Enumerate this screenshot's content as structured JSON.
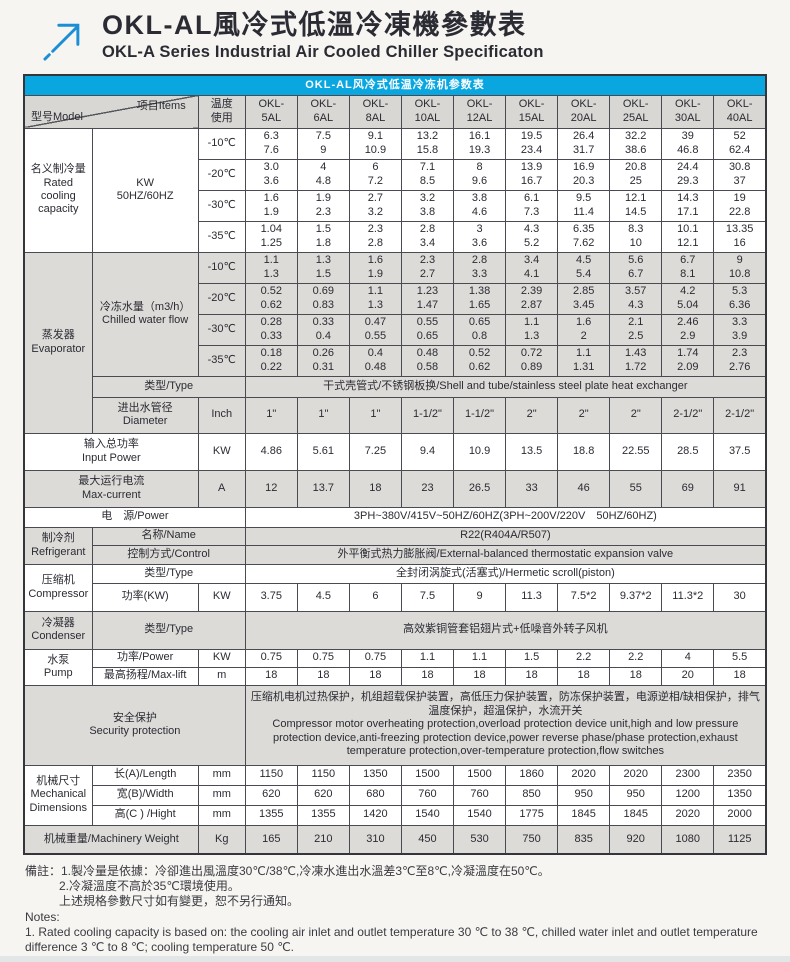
{
  "header": {
    "title_zh": "OKL-AL風冷式低溫冷凍機參數表",
    "title_en": "OKL-A Series Industrial Air Cooled Chiller Specificaton",
    "logo_icon": "arrow-up-right-icon",
    "accent_blue": "#09a6e0",
    "arrow_blue": "#1b8ed6"
  },
  "table": {
    "caption": "OKL-AL风冷式低温冷冻机参数表",
    "grid": [
      {
        "name": "caption-row",
        "h": 20,
        "cells": [
          {
            "t": "OKL-AL风冷式低温冷冻机参数表",
            "c": 13,
            "cls": "cap",
            "name": "table-caption"
          }
        ]
      },
      {
        "name": "header-row",
        "h": 33,
        "shade": false,
        "cells": [
          {
            "diag": true,
            "t1": "型号Model",
            "t2": "项目Items",
            "c": 2,
            "name": "corner-header-cell"
          },
          {
            "t": "温度\n使用",
            "cls": "head",
            "name": "temp-usage-header"
          },
          {
            "t": "OKL-\n5AL",
            "cls": "head",
            "name": "model-header-5al"
          },
          {
            "t": "OKL-\n6AL",
            "cls": "head",
            "name": "model-header-6al"
          },
          {
            "t": "OKL-\n8AL",
            "cls": "head",
            "name": "model-header-8al"
          },
          {
            "t": "OKL-\n10AL",
            "cls": "head",
            "name": "model-header-10al"
          },
          {
            "t": "OKL-\n12AL",
            "cls": "head",
            "name": "model-header-12al"
          },
          {
            "t": "OKL-\n15AL",
            "cls": "head",
            "name": "model-header-15al"
          },
          {
            "t": "OKL-\n20AL",
            "cls": "head",
            "name": "model-header-20al"
          },
          {
            "t": "OKL-\n25AL",
            "cls": "head",
            "name": "model-header-25al"
          },
          {
            "t": "OKL-\n30AL",
            "cls": "head",
            "name": "model-header-30al"
          },
          {
            "t": "OKL-\n40AL",
            "cls": "head",
            "name": "model-header-40al"
          }
        ]
      },
      {
        "name": "row-cooling-10",
        "h": 31,
        "cells": [
          {
            "t": "名义制冷量\nRated\ncooling\ncapacity",
            "r": 4,
            "name": "section-rated-cooling"
          },
          {
            "t": "KW\n50HZ/60HZ",
            "r": 4,
            "name": "cooling-unit"
          },
          {
            "t": "-10℃"
          },
          {
            "t": "6.3\n7.6"
          },
          {
            "t": "7.5\n9"
          },
          {
            "t": "9.1\n10.9"
          },
          {
            "t": "13.2\n15.8"
          },
          {
            "t": "16.1\n19.3"
          },
          {
            "t": "19.5\n23.4"
          },
          {
            "t": "26.4\n31.7"
          },
          {
            "t": "32.2\n38.6"
          },
          {
            "t": "39\n46.8"
          },
          {
            "t": "52\n62.4"
          }
        ]
      },
      {
        "name": "row-cooling-20",
        "h": 31,
        "cells": [
          {
            "t": "-20℃"
          },
          {
            "t": "3.0\n3.6"
          },
          {
            "t": "4\n4.8"
          },
          {
            "t": "6\n7.2"
          },
          {
            "t": "7.1\n8.5"
          },
          {
            "t": "8\n9.6"
          },
          {
            "t": "13.9\n16.7"
          },
          {
            "t": "16.9\n20.3"
          },
          {
            "t": "20.8\n25"
          },
          {
            "t": "24.4\n29.3"
          },
          {
            "t": "30.8\n37"
          }
        ]
      },
      {
        "name": "row-cooling-30",
        "h": 31,
        "cells": [
          {
            "t": "-30℃"
          },
          {
            "t": "1.6\n1.9"
          },
          {
            "t": "1.9\n2.3"
          },
          {
            "t": "2.7\n3.2"
          },
          {
            "t": "3.2\n3.8"
          },
          {
            "t": "3.8\n4.6"
          },
          {
            "t": "6.1\n7.3"
          },
          {
            "t": "9.5\n11.4"
          },
          {
            "t": "12.1\n14.5"
          },
          {
            "t": "14.3\n17.1"
          },
          {
            "t": "19\n22.8"
          }
        ]
      },
      {
        "name": "row-cooling-35",
        "h": 31,
        "cells": [
          {
            "t": "-35℃"
          },
          {
            "t": "1.04\n1.25"
          },
          {
            "t": "1.5\n1.8"
          },
          {
            "t": "2.3\n2.8"
          },
          {
            "t": "2.8\n3.4"
          },
          {
            "t": "3\n3.6"
          },
          {
            "t": "4.3\n5.2"
          },
          {
            "t": "6.35\n7.62"
          },
          {
            "t": "8.3\n10"
          },
          {
            "t": "10.1\n12.1"
          },
          {
            "t": "13.35\n16"
          }
        ]
      },
      {
        "name": "row-evap-flow-10",
        "h": 31,
        "shade": true,
        "cells": [
          {
            "t": "蒸发器\nEvaporator",
            "r": 6,
            "name": "section-evaporator"
          },
          {
            "t": "冷冻水量（m3/h）\nChilled water flow",
            "r": 4,
            "name": "chilled-water-flow-label"
          },
          {
            "t": "-10℃"
          },
          {
            "t": "1.1\n1.3"
          },
          {
            "t": "1.3\n1.5"
          },
          {
            "t": "1.6\n1.9"
          },
          {
            "t": "2.3\n2.7"
          },
          {
            "t": "2.8\n3.3"
          },
          {
            "t": "3.4\n4.1"
          },
          {
            "t": "4.5\n5.4"
          },
          {
            "t": "5.6\n6.7"
          },
          {
            "t": "6.7\n8.1"
          },
          {
            "t": "9\n10.8"
          }
        ]
      },
      {
        "name": "row-evap-flow-20",
        "h": 31,
        "shade": true,
        "cells": [
          {
            "t": "-20℃"
          },
          {
            "t": "0.52\n0.62"
          },
          {
            "t": "0.69\n0.83"
          },
          {
            "t": "1.1\n1.3"
          },
          {
            "t": "1.23\n1.47"
          },
          {
            "t": "1.38\n1.65"
          },
          {
            "t": "2.39\n2.87"
          },
          {
            "t": "2.85\n3.45"
          },
          {
            "t": "3.57\n4.3"
          },
          {
            "t": "4.2\n5.04"
          },
          {
            "t": "5.3\n6.36"
          }
        ]
      },
      {
        "name": "row-evap-flow-30",
        "h": 31,
        "shade": true,
        "cells": [
          {
            "t": "-30℃"
          },
          {
            "t": "0.28\n0.33"
          },
          {
            "t": "0.33\n0.4"
          },
          {
            "t": "0.47\n0.55"
          },
          {
            "t": "0.55\n0.65"
          },
          {
            "t": "0.65\n0.8"
          },
          {
            "t": "1.1\n1.3"
          },
          {
            "t": "1.6\n2"
          },
          {
            "t": "2.1\n2.5"
          },
          {
            "t": "2.46\n2.9"
          },
          {
            "t": "3.3\n3.9"
          }
        ]
      },
      {
        "name": "row-evap-flow-35",
        "h": 31,
        "shade": true,
        "cells": [
          {
            "t": "-35℃"
          },
          {
            "t": "0.18\n0.22"
          },
          {
            "t": "0.26\n0.31"
          },
          {
            "t": "0.4\n0.48"
          },
          {
            "t": "0.48\n0.58"
          },
          {
            "t": "0.52\n0.62"
          },
          {
            "t": "0.72\n0.89"
          },
          {
            "t": "1.1\n1.31"
          },
          {
            "t": "1.43\n1.72"
          },
          {
            "t": "1.74\n2.09"
          },
          {
            "t": "2.3\n2.76"
          }
        ]
      },
      {
        "name": "row-evap-type",
        "h": 21,
        "shade": true,
        "cells": [
          {
            "t": "类型/Type",
            "c": 2,
            "name": "evap-type-label"
          },
          {
            "t": "干式壳管式/不锈钢板换/Shell and tube/stainless steel plate heat exchanger",
            "c": 10,
            "name": "evap-type-value"
          }
        ]
      },
      {
        "name": "row-diameter",
        "h": 36,
        "shade": true,
        "cells": [
          {
            "t": "进出水管径\nDiameter",
            "name": "diameter-label"
          },
          {
            "t": "Inch"
          },
          {
            "t": "1\""
          },
          {
            "t": "1\""
          },
          {
            "t": "1\""
          },
          {
            "t": "1-1/2\""
          },
          {
            "t": "1-1/2\""
          },
          {
            "t": "2\""
          },
          {
            "t": "2\""
          },
          {
            "t": "2\""
          },
          {
            "t": "2-1/2\""
          },
          {
            "t": "2-1/2\""
          }
        ]
      },
      {
        "name": "row-input-power",
        "h": 37,
        "cells": [
          {
            "t": "输入总功率\nInput Power",
            "c": 2,
            "name": "input-power-label"
          },
          {
            "t": "KW"
          },
          {
            "t": "4.86"
          },
          {
            "t": "5.61"
          },
          {
            "t": "7.25"
          },
          {
            "t": "9.4"
          },
          {
            "t": "10.9"
          },
          {
            "t": "13.5"
          },
          {
            "t": "18.8"
          },
          {
            "t": "22.55"
          },
          {
            "t": "28.5"
          },
          {
            "t": "37.5"
          }
        ]
      },
      {
        "name": "row-max-current",
        "h": 37,
        "shade": true,
        "cells": [
          {
            "t": "最大运行电流\nMax-current",
            "c": 2,
            "name": "max-current-label"
          },
          {
            "t": "A"
          },
          {
            "t": "12"
          },
          {
            "t": "13.7"
          },
          {
            "t": "18"
          },
          {
            "t": "23"
          },
          {
            "t": "26.5"
          },
          {
            "t": "33"
          },
          {
            "t": "46"
          },
          {
            "t": "55"
          },
          {
            "t": "69"
          },
          {
            "t": "91"
          }
        ]
      },
      {
        "name": "row-power-supply",
        "h": 20,
        "cells": [
          {
            "t": "电　源/Power",
            "c": 3,
            "name": "power-supply-label"
          },
          {
            "t": "3PH~380V/415V~50HZ/60HZ(3PH~200V/220V　50HZ/60HZ)",
            "c": 10,
            "name": "power-supply-value"
          }
        ]
      },
      {
        "name": "row-refrigerant-name",
        "h": 18,
        "shade": true,
        "cells": [
          {
            "t": "制冷剂\nRefrigerant",
            "r": 2,
            "name": "section-refrigerant"
          },
          {
            "t": "名称/Name",
            "c": 2,
            "name": "refrigerant-name-label"
          },
          {
            "t": "R22(R404A/R507)",
            "c": 10,
            "name": "refrigerant-name-value"
          }
        ]
      },
      {
        "name": "row-refrigerant-control",
        "h": 19,
        "shade": true,
        "cells": [
          {
            "t": "控制方式/Control",
            "c": 2,
            "name": "refrigerant-control-label"
          },
          {
            "t": "外平衡式热力膨胀阀/External-balanced thermostatic expansion valve",
            "c": 10,
            "name": "refrigerant-control-value"
          }
        ]
      },
      {
        "name": "row-compressor-type",
        "h": 19,
        "cells": [
          {
            "t": "压缩机\nCompressor",
            "r": 2,
            "name": "section-compressor"
          },
          {
            "t": "类型/Type",
            "c": 2,
            "name": "compressor-type-label"
          },
          {
            "t": "全封闭涡旋式(活塞式)/Hermetic scroll(piston)",
            "c": 10,
            "name": "compressor-type-value"
          }
        ]
      },
      {
        "name": "row-compressor-power",
        "h": 28,
        "cells": [
          {
            "t": "功率(KW)",
            "name": "compressor-power-label"
          },
          {
            "t": "KW"
          },
          {
            "t": "3.75"
          },
          {
            "t": "4.5"
          },
          {
            "t": "6"
          },
          {
            "t": "7.5"
          },
          {
            "t": "9"
          },
          {
            "t": "11.3"
          },
          {
            "t": "7.5*2"
          },
          {
            "t": "9.37*2"
          },
          {
            "t": "11.3*2"
          },
          {
            "t": "30"
          }
        ]
      },
      {
        "name": "row-condenser-type",
        "h": 38,
        "shade": true,
        "cells": [
          {
            "t": "冷凝器\nCondenser",
            "name": "section-condenser"
          },
          {
            "t": "类型/Type",
            "c": 2,
            "name": "condenser-type-label"
          },
          {
            "t": "高效紫铜管套铝翅片式+低噪音外转子风机",
            "c": 10,
            "name": "condenser-type-value"
          }
        ]
      },
      {
        "name": "row-pump-power",
        "h": 18,
        "cells": [
          {
            "t": "水泵\nPump",
            "r": 2,
            "name": "section-pump"
          },
          {
            "t": "功率/Power",
            "name": "pump-power-label"
          },
          {
            "t": "KW"
          },
          {
            "t": "0.75"
          },
          {
            "t": "0.75"
          },
          {
            "t": "0.75"
          },
          {
            "t": "1.1"
          },
          {
            "t": "1.1"
          },
          {
            "t": "1.5"
          },
          {
            "t": "2.2"
          },
          {
            "t": "2.2"
          },
          {
            "t": "4"
          },
          {
            "t": "5.5"
          }
        ]
      },
      {
        "name": "row-pump-lift",
        "h": 18,
        "cells": [
          {
            "t": "最高扬程/Max-lift",
            "name": "pump-lift-label"
          },
          {
            "t": "m"
          },
          {
            "t": "18"
          },
          {
            "t": "18"
          },
          {
            "t": "18"
          },
          {
            "t": "18"
          },
          {
            "t": "18"
          },
          {
            "t": "18"
          },
          {
            "t": "18"
          },
          {
            "t": "18"
          },
          {
            "t": "20"
          },
          {
            "t": "18"
          }
        ]
      },
      {
        "name": "row-security",
        "h": 80,
        "shade": true,
        "cells": [
          {
            "t": "安全保护\nSecurity protection",
            "c": 3,
            "name": "section-security"
          },
          {
            "t": "压缩机电机过热保护，机组超载保护装置，高低压力保护装置，防冻保护装置，电源逆相/缺相保护，排气温度保护，超温保护，水流开关\n Compressor motor overheating protection,overload protection device unit,high and low pressure protection device,anti-freezing protection device,power reverse phase/phase protection,exhaust temperature protection,over-temperature protection,flow switches",
            "c": 10,
            "cls": "left",
            "name": "security-protection-value"
          }
        ]
      },
      {
        "name": "row-dim-length",
        "h": 20,
        "cells": [
          {
            "t": "机械尺寸\nMechanical\nDimensions",
            "r": 3,
            "name": "section-dimensions"
          },
          {
            "t": "长(A)/Length",
            "name": "length-label"
          },
          {
            "t": "mm"
          },
          {
            "t": "1150"
          },
          {
            "t": "1150"
          },
          {
            "t": "1350"
          },
          {
            "t": "1500"
          },
          {
            "t": "1500"
          },
          {
            "t": "1860"
          },
          {
            "t": "2020"
          },
          {
            "t": "2020"
          },
          {
            "t": "2300"
          },
          {
            "t": "2350"
          }
        ]
      },
      {
        "name": "row-dim-width",
        "h": 20,
        "cells": [
          {
            "t": "宽(B)/Width",
            "name": "width-label"
          },
          {
            "t": "mm"
          },
          {
            "t": "620"
          },
          {
            "t": "620"
          },
          {
            "t": "680"
          },
          {
            "t": "760"
          },
          {
            "t": "760"
          },
          {
            "t": "850"
          },
          {
            "t": "950"
          },
          {
            "t": "950"
          },
          {
            "t": "1200"
          },
          {
            "t": "1350"
          }
        ]
      },
      {
        "name": "row-dim-height",
        "h": 20,
        "cells": [
          {
            "t": "高(C ) /Hight",
            "name": "height-label"
          },
          {
            "t": "mm"
          },
          {
            "t": "1355"
          },
          {
            "t": "1355"
          },
          {
            "t": "1420"
          },
          {
            "t": "1540"
          },
          {
            "t": "1540"
          },
          {
            "t": "1775"
          },
          {
            "t": "1845"
          },
          {
            "t": "1845"
          },
          {
            "t": "2020"
          },
          {
            "t": "2000"
          }
        ]
      },
      {
        "name": "row-weight",
        "h": 29,
        "shade": true,
        "cells": [
          {
            "t": "机械重量/Machinery Weight",
            "c": 2,
            "name": "weight-label"
          },
          {
            "t": "Kg"
          },
          {
            "t": "165"
          },
          {
            "t": "210"
          },
          {
            "t": "310"
          },
          {
            "t": "450"
          },
          {
            "t": "530"
          },
          {
            "t": "750"
          },
          {
            "t": "835"
          },
          {
            "t": "920"
          },
          {
            "t": "1080"
          },
          {
            "t": "1125"
          }
        ]
      }
    ]
  },
  "notes": {
    "line1": "備註：1.製冷量是依據：冷卻進出風溫度30℃/38℃,冷凍水進出水溫差3℃至8℃,冷凝溫度在50℃。",
    "line2": "2.冷凝溫度不高於35℃環境使用。",
    "line3": "上述規格參數尺寸如有變更，恕不另行通知。",
    "line4": "Notes:",
    "line5": "1. Rated cooling capacity is based on: the cooling air inlet and outlet temperature 30 ℃ to 38 ℃, chilled water inlet and outlet temperature difference 3 ℃ to 8 ℃; cooling temperature 50 ℃."
  }
}
